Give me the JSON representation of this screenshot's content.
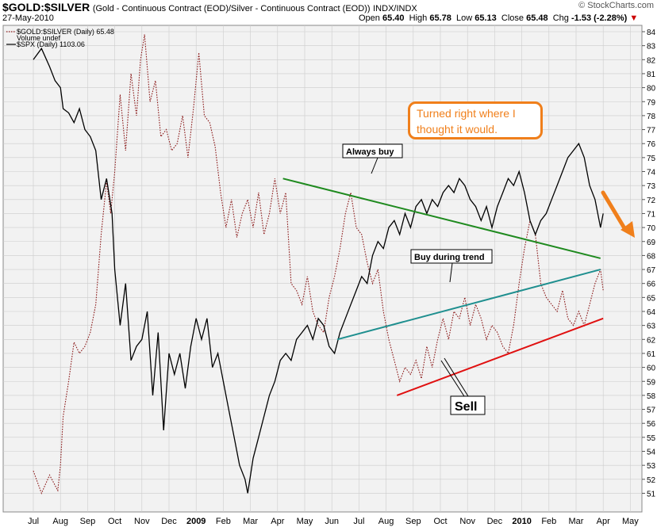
{
  "header": {
    "symbol": "$GOLD:$SILVER",
    "description": "(Gold - Continuous Contract (EOD)/Silver - Continuous Contract (EOD))",
    "exchange": "INDX/INDX",
    "date": "27-May-2010",
    "open_label": "Open",
    "open": "65.40",
    "high_label": "High",
    "high": "65.78",
    "low_label": "Low",
    "low": "65.13",
    "close_label": "Close",
    "close": "65.48",
    "chg_label": "Chg",
    "chg": "-1.53 (-2.28%)",
    "chg_arrow": "▼",
    "logo": "© StockCharts.com"
  },
  "legend": [
    {
      "text": "$GOLD:$SILVER (Daily) 65.48",
      "style": "dotted"
    },
    {
      "text": "Volume undef",
      "style": "none"
    },
    {
      "text": "$SPX (Daily) 1103.06",
      "style": "solid"
    }
  ],
  "annotations": {
    "callout": "Turned right where I thought it would.",
    "always_buy": "Always buy",
    "buy_during_trend": "Buy during trend",
    "sell": "Sell"
  },
  "colors": {
    "gold_silver": "#8b1a1a",
    "spx": "#000000",
    "always_buy_line": "#1f8a1f",
    "buy_trend_line": "#1f8f8f",
    "sell_line": "#e01010",
    "callout": "#f07f1b",
    "plot_bg": "#f2f2f2",
    "grid": "#cccccc"
  },
  "chart_data": {
    "type": "line",
    "x_tick_labels": [
      "Jul",
      "Aug",
      "Sep",
      "Oct",
      "Nov",
      "Dec",
      "2009",
      "Feb",
      "Mar",
      "Apr",
      "May",
      "Jun",
      "Jul",
      "Aug",
      "Sep",
      "Oct",
      "Nov",
      "Dec",
      "2010",
      "Feb",
      "Mar",
      "Apr",
      "May"
    ],
    "y_tick_labels": [
      51,
      52,
      53,
      54,
      55,
      56,
      57,
      58,
      59,
      60,
      61,
      62,
      63,
      64,
      65,
      66,
      67,
      68,
      69,
      70,
      71,
      72,
      73,
      74,
      75,
      76,
      77,
      78,
      79,
      80,
      81,
      82,
      83,
      84
    ],
    "ylim": [
      50.5,
      84.5
    ],
    "y_axis_side": "right",
    "grid": true,
    "legend_position": "top-left",
    "series": [
      {
        "name": "$GOLD:$SILVER (Daily) 65.48",
        "style": "dotted",
        "points": [
          [
            0,
            52.6
          ],
          [
            0.3,
            51.0
          ],
          [
            0.6,
            52.3
          ],
          [
            0.9,
            51.2
          ],
          [
            1.0,
            53.0
          ],
          [
            1.1,
            56.5
          ],
          [
            1.3,
            59.0
          ],
          [
            1.5,
            61.8
          ],
          [
            1.7,
            61.0
          ],
          [
            1.9,
            61.5
          ],
          [
            2.1,
            62.5
          ],
          [
            2.3,
            64.5
          ],
          [
            2.5,
            69.5
          ],
          [
            2.7,
            73.3
          ],
          [
            2.85,
            71.0
          ],
          [
            3.0,
            74.0
          ],
          [
            3.2,
            79.5
          ],
          [
            3.4,
            75.5
          ],
          [
            3.6,
            81.0
          ],
          [
            3.8,
            78.0
          ],
          [
            3.95,
            82.0
          ],
          [
            4.1,
            83.8
          ],
          [
            4.3,
            79.0
          ],
          [
            4.5,
            80.5
          ],
          [
            4.7,
            76.5
          ],
          [
            4.9,
            77.0
          ],
          [
            5.1,
            75.5
          ],
          [
            5.3,
            76.0
          ],
          [
            5.5,
            78.0
          ],
          [
            5.7,
            75.0
          ],
          [
            5.9,
            78.5
          ],
          [
            6.1,
            82.5
          ],
          [
            6.3,
            78.0
          ],
          [
            6.5,
            77.5
          ],
          [
            6.7,
            75.8
          ],
          [
            6.9,
            72.5
          ],
          [
            7.1,
            70.0
          ],
          [
            7.3,
            72.0
          ],
          [
            7.5,
            69.3
          ],
          [
            7.7,
            71.0
          ],
          [
            7.9,
            72.0
          ],
          [
            8.1,
            70.0
          ],
          [
            8.3,
            72.5
          ],
          [
            8.5,
            69.5
          ],
          [
            8.7,
            71.0
          ],
          [
            8.9,
            73.5
          ],
          [
            9.1,
            71.0
          ],
          [
            9.3,
            72.5
          ],
          [
            9.5,
            66.0
          ],
          [
            9.7,
            65.5
          ],
          [
            9.9,
            64.5
          ],
          [
            10.1,
            66.5
          ],
          [
            10.3,
            64.0
          ],
          [
            10.5,
            63.0
          ],
          [
            10.7,
            62.5
          ],
          [
            10.9,
            65.0
          ],
          [
            11.1,
            66.5
          ],
          [
            11.3,
            68.5
          ],
          [
            11.5,
            71.0
          ],
          [
            11.7,
            72.5
          ],
          [
            11.9,
            70.0
          ],
          [
            12.1,
            69.5
          ],
          [
            12.3,
            67.5
          ],
          [
            12.5,
            66.0
          ],
          [
            12.7,
            67.0
          ],
          [
            12.9,
            64.0
          ],
          [
            13.1,
            62.0
          ],
          [
            13.3,
            60.5
          ],
          [
            13.5,
            59.0
          ],
          [
            13.7,
            60.0
          ],
          [
            13.9,
            59.5
          ],
          [
            14.1,
            60.5
          ],
          [
            14.3,
            59.2
          ],
          [
            14.5,
            61.5
          ],
          [
            14.7,
            60.0
          ],
          [
            14.9,
            62.0
          ],
          [
            15.1,
            63.5
          ],
          [
            15.3,
            62.0
          ],
          [
            15.5,
            64.0
          ],
          [
            15.7,
            63.5
          ],
          [
            15.9,
            65.0
          ],
          [
            16.1,
            63.0
          ],
          [
            16.3,
            64.5
          ],
          [
            16.5,
            63.5
          ],
          [
            16.7,
            62.0
          ],
          [
            16.9,
            63.0
          ],
          [
            17.1,
            62.5
          ],
          [
            17.3,
            61.5
          ],
          [
            17.5,
            61.0
          ],
          [
            17.7,
            63.0
          ],
          [
            17.9,
            66.0
          ],
          [
            18.1,
            68.5
          ],
          [
            18.3,
            70.5
          ],
          [
            18.5,
            69.5
          ],
          [
            18.7,
            66.0
          ],
          [
            18.9,
            65.0
          ],
          [
            19.1,
            64.5
          ],
          [
            19.3,
            64.0
          ],
          [
            19.5,
            65.5
          ],
          [
            19.7,
            63.5
          ],
          [
            19.9,
            63.0
          ],
          [
            20.1,
            64.0
          ],
          [
            20.3,
            63.0
          ],
          [
            20.5,
            64.5
          ],
          [
            20.7,
            66.0
          ],
          [
            20.9,
            67.0
          ],
          [
            21.0,
            65.5
          ]
        ]
      },
      {
        "name": "$SPX (Daily) 1103.06",
        "style": "solid",
        "points": [
          [
            0,
            82.0
          ],
          [
            0.3,
            82.8
          ],
          [
            0.6,
            81.5
          ],
          [
            0.8,
            80.5
          ],
          [
            1.0,
            80.0
          ],
          [
            1.1,
            78.5
          ],
          [
            1.3,
            78.2
          ],
          [
            1.5,
            77.5
          ],
          [
            1.7,
            78.5
          ],
          [
            1.9,
            77.0
          ],
          [
            2.1,
            76.5
          ],
          [
            2.3,
            75.5
          ],
          [
            2.5,
            72.0
          ],
          [
            2.7,
            73.5
          ],
          [
            2.9,
            71.0
          ],
          [
            3.0,
            67.0
          ],
          [
            3.2,
            63.0
          ],
          [
            3.4,
            66.0
          ],
          [
            3.6,
            60.5
          ],
          [
            3.8,
            61.5
          ],
          [
            4.0,
            62.0
          ],
          [
            4.2,
            64.0
          ],
          [
            4.4,
            58.0
          ],
          [
            4.6,
            62.5
          ],
          [
            4.8,
            55.5
          ],
          [
            5.0,
            61.0
          ],
          [
            5.2,
            59.5
          ],
          [
            5.4,
            61.0
          ],
          [
            5.6,
            58.5
          ],
          [
            5.8,
            61.5
          ],
          [
            6.0,
            63.5
          ],
          [
            6.2,
            62.0
          ],
          [
            6.4,
            63.5
          ],
          [
            6.6,
            60.0
          ],
          [
            6.8,
            61.0
          ],
          [
            7.0,
            59.0
          ],
          [
            7.2,
            57.0
          ],
          [
            7.4,
            55.0
          ],
          [
            7.6,
            53.0
          ],
          [
            7.8,
            52.0
          ],
          [
            7.9,
            51.0
          ],
          [
            8.1,
            53.5
          ],
          [
            8.3,
            55.0
          ],
          [
            8.5,
            56.5
          ],
          [
            8.7,
            58.0
          ],
          [
            8.9,
            59.0
          ],
          [
            9.1,
            60.5
          ],
          [
            9.3,
            61.0
          ],
          [
            9.5,
            60.5
          ],
          [
            9.7,
            62.0
          ],
          [
            9.9,
            62.5
          ],
          [
            10.1,
            63.0
          ],
          [
            10.3,
            62.0
          ],
          [
            10.5,
            63.5
          ],
          [
            10.7,
            63.0
          ],
          [
            10.9,
            61.5
          ],
          [
            11.1,
            61.0
          ],
          [
            11.3,
            62.5
          ],
          [
            11.5,
            63.5
          ],
          [
            11.7,
            64.5
          ],
          [
            11.9,
            65.5
          ],
          [
            12.1,
            66.5
          ],
          [
            12.3,
            66.0
          ],
          [
            12.5,
            68.0
          ],
          [
            12.7,
            69.0
          ],
          [
            12.9,
            68.5
          ],
          [
            13.1,
            70.0
          ],
          [
            13.3,
            70.5
          ],
          [
            13.5,
            69.5
          ],
          [
            13.7,
            71.0
          ],
          [
            13.9,
            70.0
          ],
          [
            14.1,
            71.5
          ],
          [
            14.3,
            72.0
          ],
          [
            14.5,
            71.0
          ],
          [
            14.7,
            72.0
          ],
          [
            14.9,
            71.5
          ],
          [
            15.1,
            72.5
          ],
          [
            15.3,
            73.0
          ],
          [
            15.5,
            72.5
          ],
          [
            15.7,
            73.5
          ],
          [
            15.9,
            73.0
          ],
          [
            16.1,
            72.0
          ],
          [
            16.3,
            71.5
          ],
          [
            16.5,
            70.5
          ],
          [
            16.7,
            71.5
          ],
          [
            16.9,
            70.0
          ],
          [
            17.1,
            71.5
          ],
          [
            17.3,
            72.5
          ],
          [
            17.5,
            73.5
          ],
          [
            17.7,
            73.0
          ],
          [
            17.9,
            74.0
          ],
          [
            18.1,
            72.5
          ],
          [
            18.3,
            70.5
          ],
          [
            18.5,
            69.5
          ],
          [
            18.7,
            70.5
          ],
          [
            18.9,
            71.0
          ],
          [
            19.1,
            72.0
          ],
          [
            19.3,
            73.0
          ],
          [
            19.5,
            74.0
          ],
          [
            19.7,
            75.0
          ],
          [
            19.9,
            75.5
          ],
          [
            20.1,
            76.0
          ],
          [
            20.3,
            75.0
          ],
          [
            20.5,
            73.0
          ],
          [
            20.7,
            72.0
          ],
          [
            20.9,
            70.0
          ],
          [
            21.0,
            71.0
          ]
        ]
      }
    ],
    "trendlines": [
      {
        "label": "Always buy",
        "from": [
          9.2,
          73.5
        ],
        "to": [
          20.9,
          67.8
        ],
        "color": "#1f8a1f"
      },
      {
        "label": "Buy during trend",
        "from": [
          11.2,
          62.0
        ],
        "to": [
          20.9,
          67.0
        ],
        "color": "#1f8f8f"
      },
      {
        "label": "Sell",
        "from": [
          13.4,
          58.0
        ],
        "to": [
          21.0,
          63.5
        ],
        "color": "#e01010"
      }
    ]
  }
}
